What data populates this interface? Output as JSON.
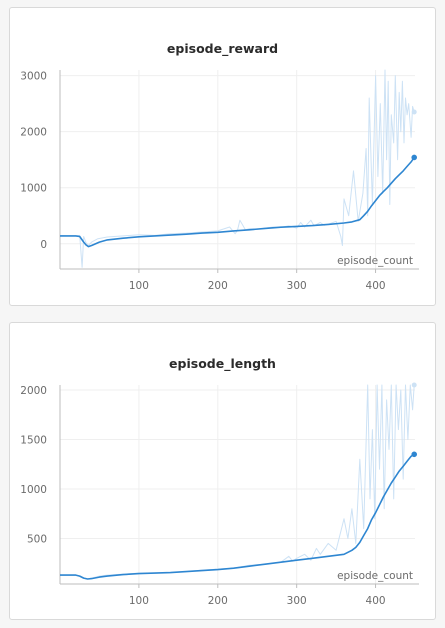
{
  "chart_data": [
    {
      "type": "line",
      "title": "episode_reward",
      "xlabel": "episode_count",
      "ylabel": "",
      "xlim": [
        0,
        450
      ],
      "ylim": [
        -450,
        3100
      ],
      "xticks": [
        100,
        200,
        300,
        400
      ],
      "yticks": [
        0,
        1000,
        2000,
        3000
      ],
      "grid": true,
      "colors": {
        "smoothed": "#2e86d1",
        "raw": "#cde2f5"
      },
      "series": [
        {
          "role": "raw",
          "x": [
            0,
            10,
            20,
            25,
            28,
            30,
            33,
            36,
            40,
            48,
            60,
            80,
            100,
            120,
            140,
            160,
            180,
            200,
            215,
            222,
            225,
            228,
            235,
            240,
            250,
            260,
            270,
            280,
            290,
            300,
            305,
            310,
            318,
            322,
            330,
            335,
            340,
            350,
            356,
            358,
            360,
            366,
            372,
            378,
            384,
            388,
            390,
            392,
            396,
            400,
            403,
            406,
            409,
            412,
            414,
            416,
            418,
            420,
            423,
            425,
            428,
            430,
            432,
            434,
            436,
            438,
            440,
            442,
            445,
            447,
            449
          ],
          "values": [
            150,
            140,
            140,
            150,
            -420,
            130,
            20,
            -30,
            30,
            90,
            120,
            140,
            160,
            150,
            180,
            190,
            210,
            230,
            300,
            180,
            240,
            420,
            250,
            270,
            260,
            280,
            300,
            290,
            320,
            280,
            380,
            300,
            420,
            320,
            380,
            330,
            350,
            400,
            130,
            -30,
            800,
            500,
            1300,
            400,
            900,
            1700,
            500,
            2600,
            700,
            3000,
            1200,
            2500,
            900,
            3100,
            1500,
            2900,
            700,
            2300,
            1800,
            3000,
            1500,
            2700,
            2000,
            2900,
            1800,
            2600,
            2300,
            2500,
            1900,
            2450,
            2350
          ]
        },
        {
          "role": "smoothed",
          "x": [
            0,
            10,
            20,
            25,
            30,
            33,
            36,
            40,
            50,
            60,
            80,
            100,
            120,
            140,
            160,
            180,
            200,
            220,
            240,
            260,
            280,
            300,
            320,
            340,
            360,
            370,
            380,
            385,
            390,
            395,
            400,
            405,
            410,
            415,
            420,
            425,
            430,
            435,
            440,
            445,
            449
          ],
          "values": [
            140,
            140,
            140,
            130,
            30,
            -20,
            -50,
            -30,
            30,
            70,
            100,
            125,
            140,
            155,
            170,
            190,
            205,
            230,
            250,
            275,
            295,
            310,
            325,
            345,
            370,
            390,
            430,
            500,
            580,
            680,
            770,
            860,
            930,
            1000,
            1080,
            1160,
            1230,
            1300,
            1380,
            1460,
            1540
          ]
        }
      ]
    },
    {
      "type": "line",
      "title": "episode_length",
      "xlabel": "episode_count",
      "ylabel": "",
      "xlim": [
        0,
        450
      ],
      "ylim": [
        40,
        2050
      ],
      "xticks": [
        100,
        200,
        300,
        400
      ],
      "yticks": [
        500,
        1000,
        1500,
        2000
      ],
      "grid": true,
      "colors": {
        "smoothed": "#2e86d1",
        "raw": "#cde2f5"
      },
      "series": [
        {
          "role": "raw",
          "x": [
            0,
            10,
            20,
            25,
            30,
            35,
            40,
            50,
            60,
            80,
            100,
            120,
            140,
            160,
            180,
            200,
            220,
            240,
            260,
            280,
            290,
            295,
            300,
            310,
            318,
            325,
            330,
            340,
            350,
            360,
            365,
            370,
            375,
            380,
            385,
            390,
            393,
            396,
            399,
            402,
            405,
            408,
            411,
            414,
            417,
            420,
            423,
            426,
            429,
            432,
            435,
            438,
            441,
            444,
            447,
            449
          ],
          "values": [
            130,
            130,
            130,
            120,
            100,
            90,
            100,
            120,
            130,
            140,
            150,
            150,
            155,
            165,
            180,
            190,
            200,
            230,
            240,
            260,
            320,
            270,
            300,
            340,
            280,
            400,
            340,
            450,
            380,
            700,
            500,
            800,
            450,
            1300,
            600,
            2050,
            900,
            1600,
            700,
            2050,
            1200,
            2050,
            800,
            1900,
            1400,
            2050,
            900,
            2050,
            1600,
            2000,
            1100,
            2050,
            1500,
            2050,
            1800,
            2050
          ]
        },
        {
          "role": "smoothed",
          "x": [
            0,
            10,
            20,
            25,
            30,
            35,
            40,
            50,
            60,
            80,
            100,
            120,
            140,
            160,
            180,
            200,
            220,
            240,
            260,
            280,
            300,
            320,
            340,
            360,
            370,
            375,
            380,
            385,
            390,
            395,
            400,
            405,
            410,
            415,
            420,
            425,
            430,
            435,
            440,
            445,
            449
          ],
          "values": [
            130,
            130,
            130,
            120,
            100,
            90,
            95,
            110,
            120,
            135,
            145,
            150,
            155,
            165,
            175,
            185,
            200,
            220,
            240,
            260,
            280,
            300,
            320,
            340,
            380,
            410,
            460,
            530,
            600,
            690,
            760,
            840,
            920,
            990,
            1060,
            1120,
            1180,
            1230,
            1280,
            1330,
            1350
          ]
        }
      ]
    }
  ]
}
